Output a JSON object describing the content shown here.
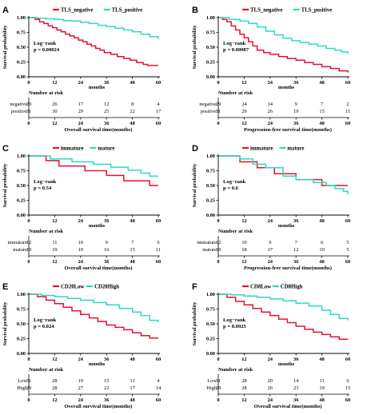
{
  "colors": {
    "negative": "#e8112d",
    "positive": "#2ed9c3",
    "axis": "#000000"
  },
  "chart_data": [
    {
      "panel": "A",
      "type": "line",
      "ylabel": "Survival probability",
      "ylim": [
        0,
        1
      ],
      "yticks": [
        "0.00",
        "0.25",
        "0.50",
        "0.75",
        "1.00"
      ],
      "xlim": [
        0,
        60
      ],
      "xticks": [
        0,
        12,
        24,
        36,
        48,
        60
      ],
      "xunit": "months",
      "legend": [
        {
          "label": "TLS_negative",
          "color": "#e8112d"
        },
        {
          "label": "TLS_positive",
          "color": "#2ed9c3"
        }
      ],
      "stat_lines": [
        "Log−rank",
        "p = 0.00024"
      ],
      "series": [
        {
          "name": "TLS_negative",
          "color": "#e8112d",
          "x": [
            0,
            3,
            5,
            7,
            9,
            11,
            13,
            15,
            17,
            19,
            21,
            23,
            25,
            27,
            29,
            31,
            33,
            35,
            38,
            41,
            44,
            47,
            50,
            53,
            55,
            58,
            60
          ],
          "y": [
            1.0,
            0.97,
            0.93,
            0.9,
            0.86,
            0.83,
            0.79,
            0.76,
            0.72,
            0.69,
            0.66,
            0.62,
            0.59,
            0.55,
            0.52,
            0.48,
            0.45,
            0.41,
            0.38,
            0.34,
            0.31,
            0.28,
            0.24,
            0.21,
            0.19,
            0.19,
            0.19
          ]
        },
        {
          "name": "TLS_positive",
          "color": "#2ed9c3",
          "x": [
            0,
            4,
            8,
            12,
            16,
            20,
            24,
            28,
            32,
            36,
            40,
            44,
            48,
            52,
            56,
            60
          ],
          "y": [
            1.0,
            0.99,
            0.98,
            0.97,
            0.95,
            0.94,
            0.92,
            0.9,
            0.87,
            0.85,
            0.82,
            0.79,
            0.76,
            0.72,
            0.68,
            0.64
          ]
        }
      ],
      "risk_table": {
        "title": "Number at risk",
        "rows": [
          {
            "label": "negative",
            "color": "#e8112d",
            "values": [
              "29",
              "26",
              "17",
              "12",
              "8",
              "4"
            ]
          },
          {
            "label": "positive",
            "color": "#2ed9c3",
            "values": [
              "31",
              "30",
              "29",
              "25",
              "22",
              "17"
            ]
          }
        ]
      },
      "xlabel": "Overall survival time(months)"
    },
    {
      "panel": "B",
      "type": "line",
      "ylabel": "Survival probability",
      "ylim": [
        0,
        1
      ],
      "yticks": [
        "0.00",
        "0.25",
        "0.50",
        "0.75",
        "1.00"
      ],
      "xlim": [
        0,
        60
      ],
      "xticks": [
        0,
        12,
        24,
        36,
        48,
        60
      ],
      "xunit": "months",
      "legend": [
        {
          "label": "TLS_negative",
          "color": "#e8112d"
        },
        {
          "label": "TLS_positive",
          "color": "#2ed9c3"
        }
      ],
      "stat_lines": [
        "Log−rank",
        "p = 0.00087"
      ],
      "series": [
        {
          "name": "TLS_negative",
          "color": "#e8112d",
          "x": [
            0,
            2,
            4,
            6,
            8,
            10,
            12,
            14,
            16,
            18,
            21,
            24,
            28,
            32,
            36,
            40,
            44,
            48,
            52,
            56,
            60
          ],
          "y": [
            1.0,
            0.97,
            0.93,
            0.86,
            0.79,
            0.72,
            0.66,
            0.59,
            0.52,
            0.45,
            0.41,
            0.38,
            0.34,
            0.31,
            0.28,
            0.24,
            0.21,
            0.17,
            0.14,
            0.1,
            0.07
          ]
        },
        {
          "name": "TLS_positive",
          "color": "#2ed9c3",
          "x": [
            0,
            5,
            10,
            14,
            18,
            22,
            26,
            30,
            34,
            38,
            42,
            46,
            50,
            54,
            57,
            60
          ],
          "y": [
            1.0,
            0.97,
            0.94,
            0.9,
            0.84,
            0.77,
            0.71,
            0.65,
            0.61,
            0.58,
            0.55,
            0.52,
            0.48,
            0.45,
            0.42,
            0.39
          ]
        }
      ],
      "risk_table": {
        "title": "Number at risk",
        "rows": [
          {
            "label": "negative",
            "color": "#e8112d",
            "values": [
              "29",
              "24",
              "14",
              "9",
              "7",
              "2"
            ]
          },
          {
            "label": "positive",
            "color": "#2ed9c3",
            "values": [
              "31",
              "29",
              "26",
              "19",
              "15",
              "11"
            ]
          }
        ]
      },
      "xlabel": "Progression-free survival time(months)"
    },
    {
      "panel": "C",
      "type": "line",
      "ylabel": "Survival probability",
      "ylim": [
        0,
        1
      ],
      "yticks": [
        "0.00",
        "0.25",
        "0.50",
        "0.75",
        "1.00"
      ],
      "xlim": [
        0,
        60
      ],
      "xticks": [
        0,
        12,
        24,
        36,
        48,
        60
      ],
      "xunit": "months",
      "legend": [
        {
          "label": "immature",
          "color": "#e8112d"
        },
        {
          "label": "mature",
          "color": "#2ed9c3"
        }
      ],
      "stat_lines": [
        "Log−rank",
        "p = 0.54"
      ],
      "series": [
        {
          "name": "immature",
          "color": "#e8112d",
          "x": [
            0,
            8,
            14,
            26,
            36,
            44,
            56,
            60
          ],
          "y": [
            1.0,
            0.92,
            0.83,
            0.75,
            0.67,
            0.58,
            0.5,
            0.5
          ]
        },
        {
          "name": "mature",
          "color": "#2ed9c3",
          "x": [
            0,
            10,
            20,
            30,
            38,
            46,
            52,
            56,
            60
          ],
          "y": [
            1.0,
            0.95,
            0.9,
            0.86,
            0.81,
            0.76,
            0.71,
            0.66,
            0.66
          ]
        }
      ],
      "risk_table": {
        "title": "Number at risk",
        "rows": [
          {
            "label": "immature",
            "color": "#e8112d",
            "values": [
              "12",
              "11",
              "10",
              "9",
              "7",
              "6"
            ]
          },
          {
            "label": "mature",
            "color": "#2ed9c3",
            "values": [
              "19",
              "19",
              "19",
              "16",
              "15",
              "11"
            ]
          }
        ]
      },
      "xlabel": "Overall survival time(months)"
    },
    {
      "panel": "D",
      "type": "line",
      "ylabel": "Survival probability",
      "ylim": [
        0,
        1
      ],
      "yticks": [
        "0.00",
        "0.25",
        "0.50",
        "0.75",
        "1.00"
      ],
      "xlim": [
        0,
        60
      ],
      "xticks": [
        0,
        12,
        24,
        36,
        48,
        60
      ],
      "xunit": "months",
      "legend": [
        {
          "label": "immature",
          "color": "#e8112d"
        },
        {
          "label": "mature",
          "color": "#2ed9c3"
        }
      ],
      "stat_lines": [
        "Log−rank",
        "p = 0.6"
      ],
      "series": [
        {
          "name": "immature",
          "color": "#e8112d",
          "x": [
            0,
            10,
            18,
            26,
            36,
            48,
            60
          ],
          "y": [
            1.0,
            0.9,
            0.8,
            0.7,
            0.6,
            0.5,
            0.5
          ]
        },
        {
          "name": "mature",
          "color": "#2ed9c3",
          "x": [
            0,
            10,
            16,
            22,
            30,
            36,
            44,
            50,
            54,
            58,
            60
          ],
          "y": [
            1.0,
            0.95,
            0.86,
            0.8,
            0.66,
            0.6,
            0.55,
            0.5,
            0.45,
            0.4,
            0.35
          ]
        }
      ],
      "risk_table": {
        "title": "Number at risk",
        "rows": [
          {
            "label": "immature",
            "color": "#e8112d",
            "values": [
              "12",
              "10",
              "9",
              "7",
              "6",
              "5"
            ]
          },
          {
            "label": "mature",
            "color": "#2ed9c3",
            "values": [
              "19",
              "18",
              "17",
              "12",
              "10",
              "5"
            ]
          }
        ]
      },
      "xlabel": "Progression-free survival time(months)"
    },
    {
      "panel": "E",
      "type": "line",
      "ylabel": "Survival probability",
      "ylim": [
        0,
        1
      ],
      "yticks": [
        "0.00",
        "0.25",
        "0.50",
        "0.75",
        "1.00"
      ],
      "xlim": [
        0,
        60
      ],
      "xticks": [
        0,
        12,
        24,
        36,
        48,
        60
      ],
      "xunit": "months",
      "legend": [
        {
          "label": "CD20Low",
          "color": "#e8112d"
        },
        {
          "label": "CD20High",
          "color": "#2ed9c3"
        }
      ],
      "stat_lines": [
        "Log−rank",
        "p = 0.024"
      ],
      "series": [
        {
          "name": "CD20Low",
          "color": "#e8112d",
          "x": [
            0,
            4,
            8,
            12,
            16,
            20,
            24,
            28,
            32,
            36,
            40,
            44,
            48,
            52,
            56,
            60
          ],
          "y": [
            1.0,
            0.96,
            0.9,
            0.84,
            0.78,
            0.72,
            0.66,
            0.6,
            0.54,
            0.48,
            0.44,
            0.4,
            0.35,
            0.3,
            0.26,
            0.26
          ]
        },
        {
          "name": "CD20High",
          "color": "#2ed9c3",
          "x": [
            0,
            6,
            12,
            18,
            24,
            30,
            36,
            42,
            48,
            52,
            56,
            60
          ],
          "y": [
            1.0,
            0.98,
            0.96,
            0.93,
            0.9,
            0.86,
            0.82,
            0.76,
            0.7,
            0.64,
            0.56,
            0.53
          ]
        }
      ],
      "risk_table": {
        "title": "Number at risk",
        "rows": [
          {
            "label": "Low",
            "color": "#e8112d",
            "values": [
              "31",
              "28",
              "19",
              "15",
              "11",
              "4"
            ]
          },
          {
            "label": "High",
            "color": "#2ed9c3",
            "values": [
              "29",
              "28",
              "27",
              "22",
              "17",
              "14"
            ]
          }
        ]
      },
      "xlabel": "Overall survival time(months)"
    },
    {
      "panel": "F",
      "type": "line",
      "ylabel": "Survival probability",
      "ylim": [
        0,
        1
      ],
      "yticks": [
        "0.00",
        "0.25",
        "0.50",
        "0.75",
        "1.00"
      ],
      "xlim": [
        0,
        60
      ],
      "xticks": [
        0,
        12,
        24,
        36,
        48,
        60
      ],
      "xunit": "months",
      "legend": [
        {
          "label": "CD8Low",
          "color": "#e8112d"
        },
        {
          "label": "CD8High",
          "color": "#2ed9c3"
        }
      ],
      "stat_lines": [
        "Log−rank",
        "p = 0.0025"
      ],
      "series": [
        {
          "name": "CD8Low",
          "color": "#e8112d",
          "x": [
            0,
            4,
            8,
            12,
            16,
            20,
            24,
            28,
            32,
            36,
            40,
            44,
            48,
            52,
            56,
            60
          ],
          "y": [
            1.0,
            0.95,
            0.88,
            0.82,
            0.76,
            0.7,
            0.64,
            0.58,
            0.52,
            0.46,
            0.41,
            0.36,
            0.32,
            0.28,
            0.24,
            0.24
          ]
        },
        {
          "name": "CD8High",
          "color": "#2ed9c3",
          "x": [
            0,
            6,
            12,
            18,
            24,
            30,
            36,
            42,
            48,
            52,
            56,
            60
          ],
          "y": [
            1.0,
            0.99,
            0.97,
            0.95,
            0.92,
            0.89,
            0.85,
            0.8,
            0.73,
            0.66,
            0.59,
            0.56
          ]
        }
      ],
      "risk_table": {
        "title": "Number at risk",
        "rows": [
          {
            "label": "Low",
            "color": "#e8112d",
            "values": [
              "31",
              "28",
              "20",
              "14",
              "11",
              "6"
            ]
          },
          {
            "label": "High",
            "color": "#2ed9c3",
            "values": [
              "29",
              "28",
              "26",
              "23",
              "19",
              "15"
            ]
          }
        ]
      },
      "xlabel": "Overall survival time(months)"
    }
  ]
}
